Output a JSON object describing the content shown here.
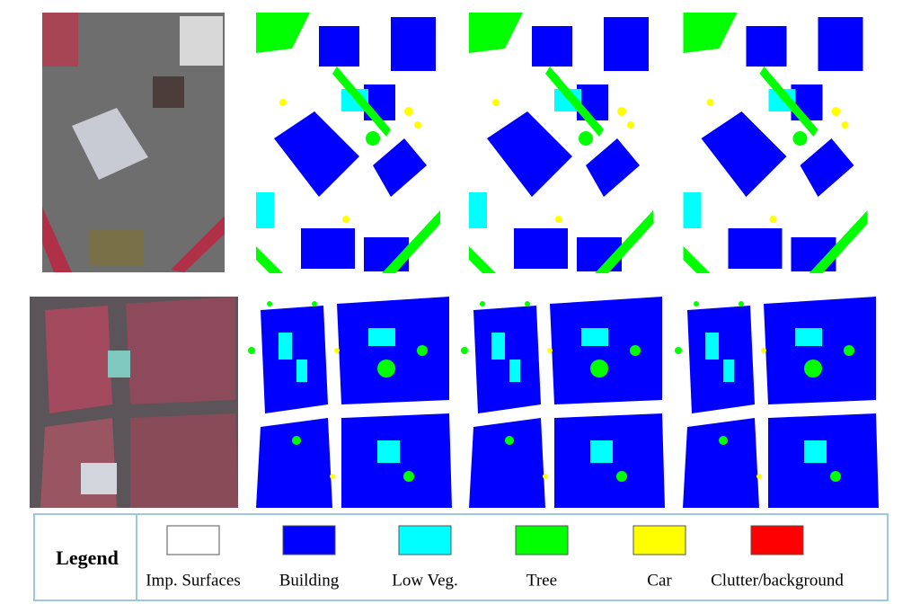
{
  "legend": {
    "title": "Legend",
    "items": [
      {
        "label": "Imp. Surfaces",
        "color": "#ffffff"
      },
      {
        "label": "Building",
        "color": "#0000ff"
      },
      {
        "label": "Low Veg.",
        "color": "#00ffff"
      },
      {
        "label": "Tree",
        "color": "#00ff00"
      },
      {
        "label": "Car",
        "color": "#ffff00"
      },
      {
        "label": "Clutter/background",
        "color": "#ff0000"
      }
    ]
  }
}
